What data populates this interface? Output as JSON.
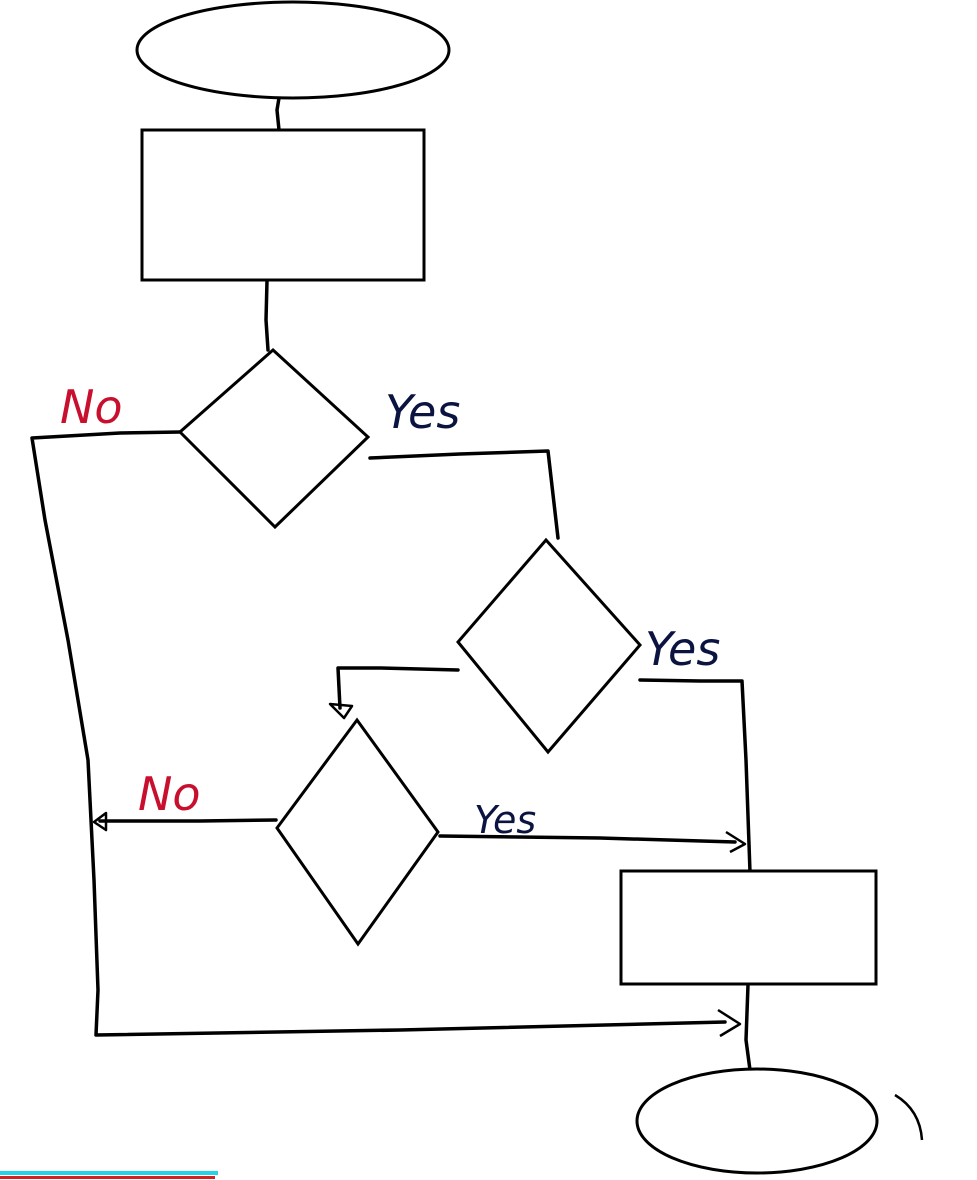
{
  "labels": {
    "decision1_no": "No",
    "decision1_yes": "Yes",
    "decision2_yes": "Yes",
    "decision3_no": "No",
    "decision3_yes": "Yes"
  },
  "colors": {
    "yes_label": "#0b1340",
    "no_label": "#c8102e",
    "stroke": "#000000",
    "bottom_bar_cyan": "#26d3e6",
    "bottom_bar_red": "#d62020"
  }
}
